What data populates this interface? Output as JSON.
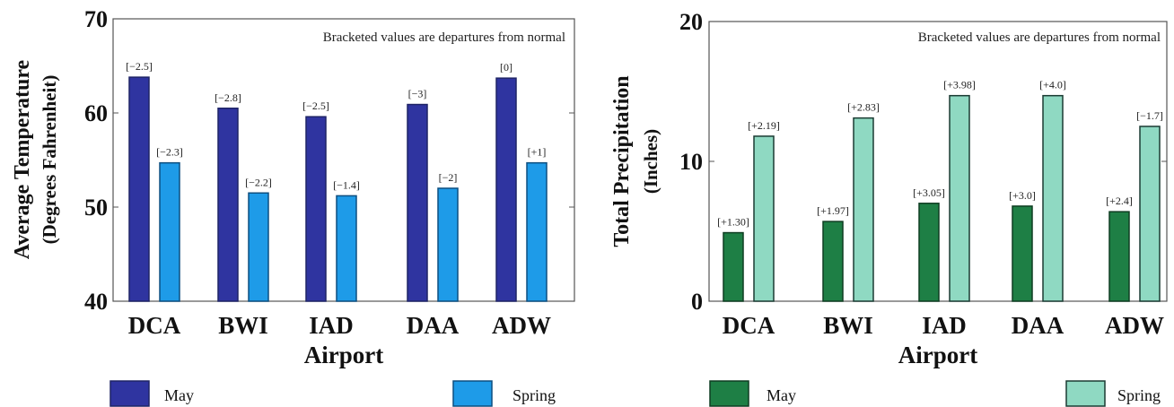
{
  "chart_data": [
    {
      "type": "bar",
      "categories": [
        "DCA",
        "BWI",
        "IAD",
        "DAA",
        "ADW"
      ],
      "series": [
        {
          "name": "May",
          "values": [
            63.8,
            60.5,
            59.6,
            60.9,
            63.7
          ],
          "labels": [
            "[−2.5]",
            "[−2.8]",
            "[−2.5]",
            "[−3]",
            "[0]"
          ]
        },
        {
          "name": "Spring",
          "values": [
            54.7,
            51.5,
            51.2,
            52.0,
            54.7
          ],
          "labels": [
            "[−2.3]",
            "[−2.2]",
            "[−1.4]",
            "[−2]",
            "[+1]"
          ]
        }
      ],
      "xlabel": "Airport",
      "ylabel": "Average Temperature",
      "ylabel2": "(Degrees Fahrenheit)",
      "ylim": [
        40,
        70
      ],
      "yticks": [
        40,
        50,
        60,
        70
      ],
      "annotation": "Bracketed values are departures from normal",
      "grid": false,
      "legend_position": "bottom",
      "colors": {
        "May": "#2f34a0",
        "Spring": "#1e9be8"
      }
    },
    {
      "type": "bar",
      "categories": [
        "DCA",
        "BWI",
        "IAD",
        "DAA",
        "ADW"
      ],
      "series": [
        {
          "name": "May",
          "values": [
            4.9,
            5.7,
            7.0,
            6.8,
            6.4
          ],
          "labels": [
            "[+1.30]",
            "[+1.97]",
            "[+3.05]",
            "[+3.0]",
            "[+2.4]"
          ]
        },
        {
          "name": "Spring",
          "values": [
            11.8,
            13.1,
            14.7,
            14.7,
            12.5
          ],
          "labels": [
            "[+2.19]",
            "[+2.83]",
            "[+3.98]",
            "[+4.0]",
            "[−1.7]"
          ]
        }
      ],
      "xlabel": "Airport",
      "ylabel": "Total Precipitation",
      "ylabel2": "(Inches)",
      "ylim": [
        0,
        20
      ],
      "yticks": [
        0,
        10,
        20
      ],
      "annotation": "Bracketed values are departures from normal",
      "grid": false,
      "legend_position": "bottom",
      "colors": {
        "May": "#1e7f45",
        "Spring": "#8fd9c2"
      }
    }
  ]
}
